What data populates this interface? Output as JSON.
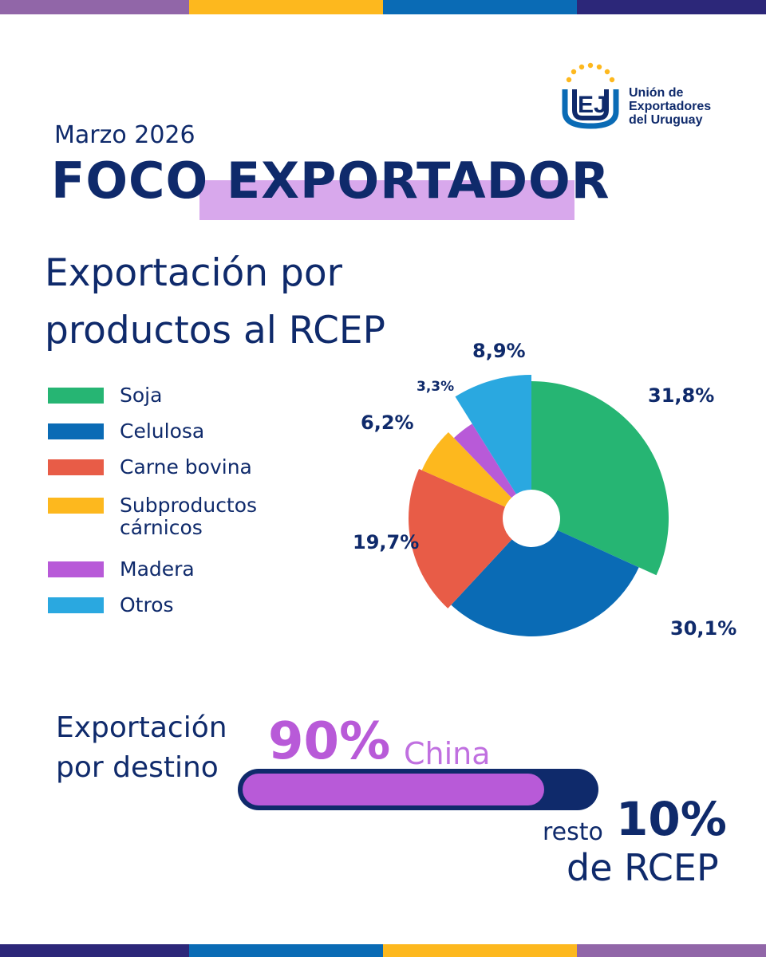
{
  "colors": {
    "navy": "#0f2a6b",
    "soja": "#26b573",
    "celulosa": "#0a6bb5",
    "carne": "#e85c47",
    "subproductos": "#fdb81e",
    "madera": "#b85ad8",
    "otros": "#2aa8e0",
    "highlight": "#d8a8ec",
    "stripe_purple": "#9166a8",
    "stripe_yellow": "#fdb81e",
    "stripe_blue": "#0a6bb5",
    "stripe_navy": "#2c2779"
  },
  "logo": {
    "mark": "EJ",
    "line1": "Unión de",
    "line2": "Exportadores",
    "line3": "del Uruguay"
  },
  "header": {
    "date": "Marzo 2026",
    "title_part1": "FOCO",
    "title_part2": "EXPORTADOR"
  },
  "section": {
    "title_line1": "Exportación por",
    "title_line2": "productos al RCEP"
  },
  "chart_data": {
    "type": "pie",
    "title": "Exportación por productos al RCEP",
    "categories": [
      "Soja",
      "Celulosa",
      "Carne bovina",
      "Subproductos cárnicos",
      "Madera",
      "Otros"
    ],
    "values": [
      31.8,
      30.1,
      19.7,
      6.2,
      3.3,
      8.9
    ],
    "value_labels": [
      "31,8%",
      "30,1%",
      "19,7%",
      "6,2%",
      "3,3%",
      "8,9%"
    ],
    "colors": [
      "#26b573",
      "#0a6bb5",
      "#e85c47",
      "#fdb81e",
      "#b85ad8",
      "#2aa8e0"
    ],
    "legend_labels": [
      "Soja",
      "Celulosa",
      "Carne bovina",
      "Subproductos\ncárnicos",
      "Madera",
      "Otros"
    ],
    "legend_position": "left",
    "start_angle_deg": 0,
    "direction": "clockwise",
    "donut_hole": true
  },
  "destination": {
    "label_line1": "Exportación",
    "label_line2": "por destino",
    "main_pct": "90%",
    "main_name": "China",
    "main_value": 90,
    "rest_word": "resto",
    "rest_pct": "10%",
    "rest_name": "de RCEP"
  }
}
